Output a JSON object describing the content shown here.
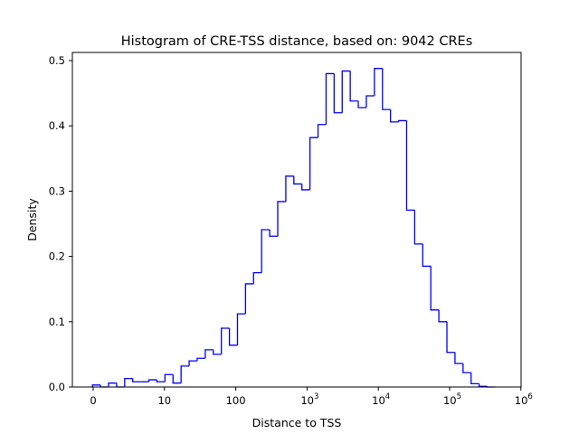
{
  "chart_data": {
    "type": "histogram",
    "title": "Histogram of CRE-TSS distance, based on: 9042 CREs",
    "xlabel": "Distance to TSS",
    "ylabel": "Density",
    "xscale": "symlog",
    "bin_edges_decades_start": -0.01,
    "bin_width_decades": 0.113,
    "xlim_decades": [
      -0.29,
      6
    ],
    "ylim": [
      0,
      0.512
    ],
    "color": "#0000ff",
    "xticks": [
      {
        "value": 0,
        "base": "0",
        "exp": ""
      },
      {
        "value": 10,
        "base": "10",
        "exp": ""
      },
      {
        "value": 100,
        "base": "100",
        "exp": ""
      },
      {
        "value": 1000,
        "base": "10",
        "exp": "3"
      },
      {
        "value": 10000,
        "base": "10",
        "exp": "4"
      },
      {
        "value": 100000,
        "base": "10",
        "exp": "5"
      },
      {
        "value": 1000000,
        "base": "10",
        "exp": "6"
      }
    ],
    "yticks": [
      "0.0",
      "0.1",
      "0.2",
      "0.3",
      "0.4",
      "0.5"
    ],
    "values": [
      0.003,
      0.0,
      0.006,
      0.0,
      0.013,
      0.008,
      0.008,
      0.011,
      0.008,
      0.019,
      0.006,
      0.032,
      0.04,
      0.044,
      0.057,
      0.05,
      0.09,
      0.064,
      0.112,
      0.158,
      0.175,
      0.241,
      0.231,
      0.284,
      0.323,
      0.311,
      0.302,
      0.382,
      0.402,
      0.48,
      0.42,
      0.484,
      0.438,
      0.428,
      0.446,
      0.488,
      0.425,
      0.406,
      0.408,
      0.271,
      0.219,
      0.185,
      0.118,
      0.1,
      0.053,
      0.036,
      0.022,
      0.005,
      0.001,
      0.0
    ]
  }
}
